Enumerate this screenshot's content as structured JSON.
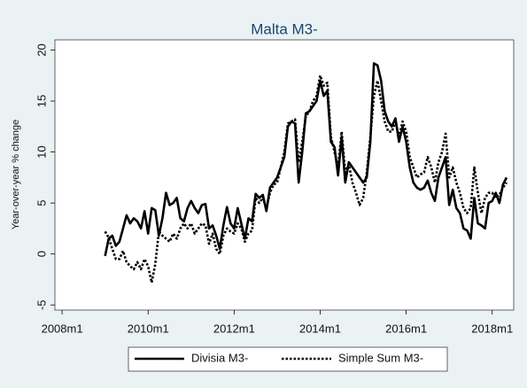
{
  "chart_data": {
    "type": "line",
    "title": "Malta M3-",
    "y_label": "Year-over-year % change",
    "x": [
      "2009m1",
      "2009m2",
      "2009m3",
      "2009m4",
      "2009m5",
      "2009m6",
      "2009m7",
      "2009m8",
      "2009m9",
      "2009m10",
      "2009m11",
      "2009m12",
      "2010m1",
      "2010m2",
      "2010m3",
      "2010m4",
      "2010m5",
      "2010m6",
      "2010m7",
      "2010m8",
      "2010m9",
      "2010m10",
      "2010m11",
      "2010m12",
      "2011m1",
      "2011m2",
      "2011m3",
      "2011m4",
      "2011m5",
      "2011m6",
      "2011m7",
      "2011m8",
      "2011m9",
      "2011m10",
      "2011m11",
      "2011m12",
      "2012m1",
      "2012m2",
      "2012m3",
      "2012m4",
      "2012m5",
      "2012m6",
      "2012m7",
      "2012m8",
      "2012m9",
      "2012m10",
      "2012m11",
      "2012m12",
      "2013m1",
      "2013m2",
      "2013m3",
      "2013m4",
      "2013m5",
      "2013m6",
      "2013m7",
      "2013m8",
      "2013m9",
      "2013m10",
      "2013m11",
      "2013m12",
      "2014m1",
      "2014m2",
      "2014m3",
      "2014m4",
      "2014m5",
      "2014m6",
      "2014m7",
      "2014m8",
      "2014m9",
      "2014m10",
      "2014m11",
      "2014m12",
      "2015m1",
      "2015m2",
      "2015m3",
      "2015m4",
      "2015m5",
      "2015m6",
      "2015m7",
      "2015m8",
      "2015m9",
      "2015m10",
      "2015m11",
      "2015m12",
      "2016m1",
      "2016m2",
      "2016m3",
      "2016m4",
      "2016m5",
      "2016m6",
      "2016m7",
      "2016m8",
      "2016m9",
      "2016m10",
      "2016m11",
      "2016m12",
      "2017m1",
      "2017m2",
      "2017m3",
      "2017m4",
      "2017m5",
      "2017m6",
      "2017m7",
      "2017m8",
      "2017m9",
      "2017m10",
      "2017m11",
      "2017m12",
      "2018m1",
      "2018m2",
      "2018m3",
      "2018m4",
      "2018m5"
    ],
    "series": [
      {
        "name": "Divisia M3-",
        "color": "#000000",
        "style": "solid",
        "values": [
          -0.2,
          1.5,
          1.8,
          0.8,
          1.2,
          2.5,
          3.8,
          3.0,
          3.5,
          3.2,
          2.5,
          4.2,
          2.0,
          4.5,
          4.3,
          1.8,
          3.5,
          6.0,
          4.8,
          5.0,
          5.5,
          3.5,
          3.2,
          4.5,
          5.2,
          4.5,
          4.0,
          4.8,
          4.9,
          2.5,
          2.8,
          1.8,
          0.5,
          2.8,
          4.6,
          3.0,
          2.5,
          4.5,
          3.0,
          1.5,
          3.5,
          3.2,
          5.9,
          5.5,
          5.8,
          4.2,
          6.5,
          7.0,
          7.5,
          8.5,
          9.5,
          12.5,
          13.0,
          12.8,
          7.0,
          10.0,
          13.8,
          14.0,
          14.5,
          15.0,
          17.0,
          15.5,
          16.0,
          11.0,
          10.5,
          7.7,
          11.5,
          7.0,
          9.0,
          8.5,
          8.0,
          7.5,
          7.0,
          7.5,
          11.0,
          18.7,
          18.5,
          17.0,
          14.0,
          13.0,
          12.5,
          13.3,
          11.0,
          12.5,
          11.0,
          8.5,
          7.0,
          6.5,
          6.3,
          6.5,
          7.2,
          6.0,
          5.2,
          7.5,
          8.5,
          9.5,
          4.8,
          6.3,
          4.5,
          4.0,
          2.5,
          2.3,
          1.5,
          5.5,
          3.0,
          2.8,
          2.5,
          5.0,
          5.2,
          6.0,
          5.0,
          6.8,
          7.5
        ]
      },
      {
        "name": "Simple Sum M3-",
        "color": "#000000",
        "style": "dotted",
        "values": [
          2.2,
          1.6,
          0.5,
          -0.5,
          -0.5,
          0.3,
          -0.8,
          -1.2,
          -1.5,
          -0.8,
          -1.5,
          -0.5,
          -1.2,
          -2.8,
          -1.0,
          2.2,
          1.8,
          1.5,
          1.2,
          2.0,
          1.5,
          2.5,
          3.0,
          2.5,
          3.0,
          2.0,
          2.5,
          3.0,
          2.8,
          1.0,
          2.0,
          0.5,
          0.0,
          1.8,
          2.5,
          2.2,
          2.0,
          3.0,
          2.5,
          1.2,
          2.0,
          2.3,
          5.5,
          5.0,
          5.5,
          4.5,
          6.0,
          6.8,
          7.0,
          8.5,
          10.0,
          12.8,
          13.0,
          13.2,
          9.0,
          11.0,
          13.5,
          14.0,
          15.0,
          15.5,
          17.5,
          16.5,
          16.8,
          11.5,
          10.0,
          8.5,
          12.0,
          8.0,
          8.8,
          7.0,
          6.0,
          4.8,
          5.5,
          8.0,
          11.5,
          15.5,
          17.0,
          15.0,
          13.0,
          12.0,
          12.0,
          13.0,
          11.5,
          13.0,
          12.0,
          9.5,
          8.5,
          7.5,
          7.8,
          8.0,
          9.5,
          8.5,
          7.0,
          9.0,
          10.0,
          11.8,
          7.5,
          8.5,
          7.0,
          6.0,
          4.5,
          4.0,
          4.5,
          8.5,
          6.0,
          4.0,
          5.5,
          6.0,
          6.0,
          5.5,
          5.8,
          6.5,
          7.0
        ]
      }
    ],
    "xlim": [
      "2007m11",
      "2018m7"
    ],
    "xticks": [
      "2008m1",
      "2010m1",
      "2012m1",
      "2014m1",
      "2016m1",
      "2018m1"
    ],
    "ylim": [
      -5.5,
      21
    ],
    "yticks": [
      -5,
      0,
      5,
      10,
      15,
      20
    ],
    "grid": false,
    "legend": "bottom"
  }
}
